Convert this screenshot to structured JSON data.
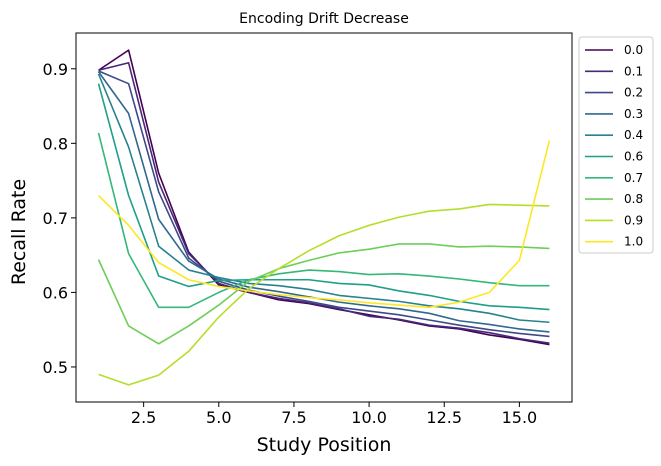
{
  "chart_data": {
    "type": "line",
    "title": "Encoding Drift Decrease",
    "xlabel": "Study Position",
    "ylabel": "Recall Rate",
    "xlim": [
      0.25,
      16.75
    ],
    "ylim": [
      0.453,
      0.948
    ],
    "xticks": [
      2.5,
      5.0,
      7.5,
      10.0,
      12.5,
      15.0
    ],
    "xtick_labels": [
      "2.5",
      "5.0",
      "7.5",
      "10.0",
      "12.5",
      "15.0"
    ],
    "yticks": [
      0.5,
      0.6,
      0.7,
      0.8,
      0.9
    ],
    "ytick_labels": [
      "0.5",
      "0.6",
      "0.7",
      "0.8",
      "0.9"
    ],
    "grid": false,
    "legend_position": "outside-right-top",
    "x": [
      1,
      2,
      3,
      4,
      5,
      6,
      7,
      8,
      9,
      10,
      11,
      12,
      13,
      14,
      15,
      16
    ],
    "series": [
      {
        "name": "0.0",
        "color": "#440154",
        "values": [
          0.898,
          0.925,
          0.76,
          0.654,
          0.61,
          0.6,
          0.59,
          0.585,
          0.577,
          0.57,
          0.563,
          0.555,
          0.551,
          0.543,
          0.537,
          0.53
        ]
      },
      {
        "name": "0.1",
        "color": "#482878",
        "values": [
          0.898,
          0.908,
          0.748,
          0.652,
          0.612,
          0.6,
          0.592,
          0.586,
          0.578,
          0.568,
          0.564,
          0.556,
          0.552,
          0.546,
          0.538,
          0.532
        ]
      },
      {
        "name": "0.2",
        "color": "#3e4989",
        "values": [
          0.897,
          0.88,
          0.735,
          0.646,
          0.615,
          0.603,
          0.595,
          0.588,
          0.58,
          0.575,
          0.57,
          0.563,
          0.556,
          0.55,
          0.545,
          0.541
        ]
      },
      {
        "name": "0.3",
        "color": "#31688e",
        "values": [
          0.896,
          0.84,
          0.698,
          0.642,
          0.618,
          0.607,
          0.601,
          0.594,
          0.587,
          0.582,
          0.578,
          0.572,
          0.562,
          0.557,
          0.551,
          0.547
        ]
      },
      {
        "name": "0.4",
        "color": "#26828e",
        "values": [
          0.893,
          0.795,
          0.662,
          0.63,
          0.62,
          0.612,
          0.609,
          0.604,
          0.596,
          0.592,
          0.588,
          0.582,
          0.578,
          0.572,
          0.563,
          0.56
        ]
      },
      {
        "name": "0.6",
        "color": "#1f9e89",
        "values": [
          0.88,
          0.73,
          0.622,
          0.608,
          0.616,
          0.617,
          0.617,
          0.617,
          0.612,
          0.61,
          0.602,
          0.596,
          0.588,
          0.582,
          0.58,
          0.577
        ]
      },
      {
        "name": "0.7",
        "color": "#35b779",
        "values": [
          0.814,
          0.652,
          0.58,
          0.58,
          0.6,
          0.617,
          0.625,
          0.63,
          0.628,
          0.624,
          0.625,
          0.622,
          0.618,
          0.613,
          0.609,
          0.609
        ]
      },
      {
        "name": "0.8",
        "color": "#6ece58",
        "values": [
          0.644,
          0.555,
          0.531,
          0.555,
          0.583,
          0.615,
          0.632,
          0.643,
          0.653,
          0.658,
          0.665,
          0.665,
          0.661,
          0.662,
          0.661,
          0.659
        ]
      },
      {
        "name": "0.9",
        "color": "#b5de2b",
        "values": [
          0.49,
          0.476,
          0.489,
          0.521,
          0.567,
          0.605,
          0.632,
          0.656,
          0.676,
          0.69,
          0.701,
          0.709,
          0.712,
          0.718,
          0.717,
          0.716
        ]
      },
      {
        "name": "1.0",
        "color": "#fde725",
        "values": [
          0.73,
          0.69,
          0.64,
          0.617,
          0.608,
          0.602,
          0.597,
          0.593,
          0.59,
          0.586,
          0.583,
          0.58,
          0.587,
          0.6,
          0.643,
          0.804
        ]
      }
    ]
  }
}
